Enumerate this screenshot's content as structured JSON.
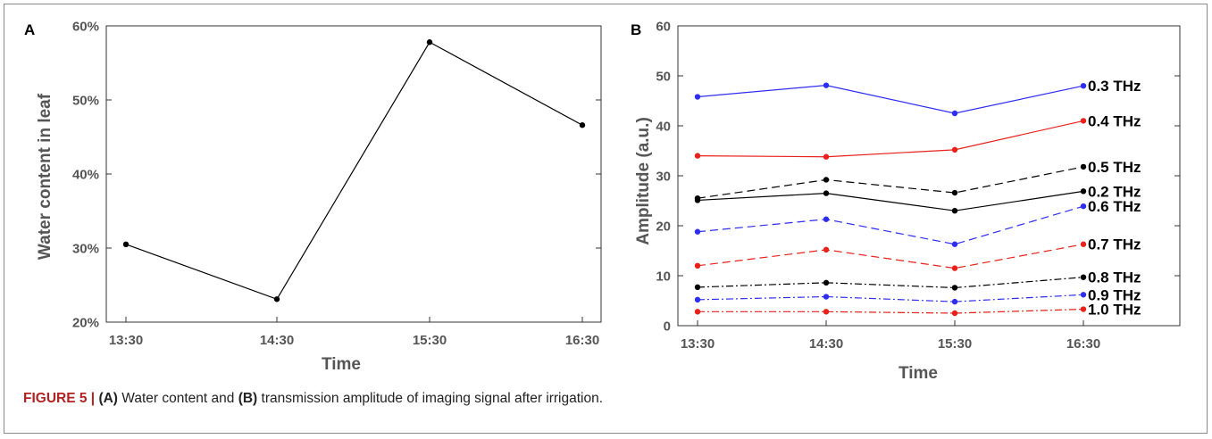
{
  "caption": {
    "figure_label": "FIGURE 5 |",
    "part_a": "(A)",
    "text_1": " Water content and ",
    "part_b": "(B)",
    "text_2": " transmission amplitude of imaging signal after irrigation."
  },
  "chart_data": [
    {
      "type": "line",
      "panel_label": "A",
      "categories": [
        "13:30",
        "14:30",
        "15:30",
        "16:30"
      ],
      "xlabel": "Time",
      "ylabel": "Water content in leaf",
      "ylim": [
        0.2,
        0.6
      ],
      "yticks": [
        "20%",
        "30%",
        "40%",
        "50%",
        "60%"
      ],
      "ytick_values": [
        0.2,
        0.3,
        0.4,
        0.5,
        0.6
      ],
      "series": [
        {
          "values": [
            0.305,
            0.231,
            0.578,
            0.466
          ],
          "color": "#000000",
          "dash": "solid"
        }
      ],
      "grid": false
    },
    {
      "type": "line",
      "panel_label": "B",
      "categories": [
        "13:30",
        "14:30",
        "15:30",
        "16:30"
      ],
      "xlabel": "Time",
      "ylabel": "Amplitude (a.u.)",
      "ylim": [
        0,
        60
      ],
      "yticks": [
        "0",
        "10",
        "20",
        "30",
        "40",
        "50",
        "60"
      ],
      "ytick_values": [
        0,
        10,
        20,
        30,
        40,
        50,
        60
      ],
      "grid": false,
      "series": [
        {
          "name": "0.3 THz",
          "values": [
            45.8,
            48.1,
            42.5,
            48.0
          ],
          "color": "#2e2ef0",
          "dash": "solid"
        },
        {
          "name": "0.4 THz",
          "values": [
            34.0,
            33.8,
            35.2,
            41.0
          ],
          "color": "#e8211a",
          "dash": "solid"
        },
        {
          "name": "0.5 THz",
          "values": [
            25.5,
            29.2,
            26.6,
            31.8
          ],
          "color": "#000000",
          "dash": "dashed"
        },
        {
          "name": "0.2 THz",
          "values": [
            25.1,
            26.5,
            23.0,
            26.9
          ],
          "color": "#000000",
          "dash": "solid"
        },
        {
          "name": "0.6 THz",
          "values": [
            18.8,
            21.3,
            16.3,
            23.9
          ],
          "color": "#2e2ef0",
          "dash": "dashed"
        },
        {
          "name": "0.7 THz",
          "values": [
            12.0,
            15.2,
            11.5,
            16.3
          ],
          "color": "#e8211a",
          "dash": "dashed"
        },
        {
          "name": "0.8 THz",
          "values": [
            7.7,
            8.6,
            7.6,
            9.7
          ],
          "color": "#000000",
          "dash": "dashdot"
        },
        {
          "name": "0.9 THz",
          "values": [
            5.2,
            5.8,
            4.8,
            6.2
          ],
          "color": "#2e2ef0",
          "dash": "dashdot"
        },
        {
          "name": "1.0 THz",
          "values": [
            2.8,
            2.8,
            2.5,
            3.3
          ],
          "color": "#e8211a",
          "dash": "dashdot"
        }
      ]
    }
  ]
}
